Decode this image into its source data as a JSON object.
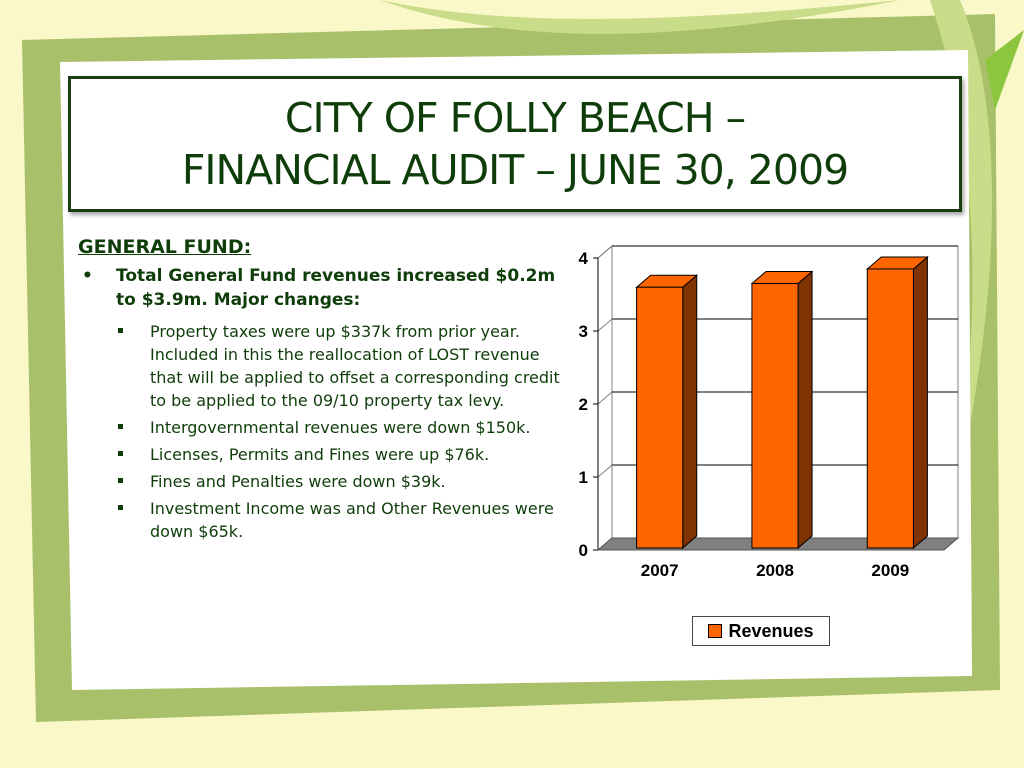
{
  "slide": {
    "title_line1": "CITY OF FOLLY BEACH –",
    "title_line2": "FINANCIAL AUDIT – JUNE 30, 2009"
  },
  "content": {
    "heading": "GENERAL FUND:",
    "bullet_mark": "•",
    "main_bullet": "Total General Fund revenues increased $0.2m to $3.9m.  Major changes:",
    "sub_bullets": [
      "Property taxes were up $337k from prior year.  Included in this the reallocation of LOST revenue that will be applied to offset a corresponding credit to be applied to the 09/10 property tax levy.",
      "Intergovernmental revenues were down $150k.",
      "Licenses, Permits and Fines were up $76k.",
      "Fines and Penalties were down $39k.",
      "Investment Income was  and Other Revenues were down $65k."
    ]
  },
  "chart_data": {
    "type": "bar",
    "categories": [
      "2007",
      "2008",
      "2009"
    ],
    "series": [
      {
        "name": "Revenues",
        "values": [
          3.6,
          3.65,
          3.85
        ]
      }
    ],
    "ylim": [
      0,
      4
    ],
    "yticks": [
      "0",
      "1",
      "2",
      "3",
      "4"
    ],
    "grid": true,
    "legend": "bottom",
    "bar_front_color": "#ff6600",
    "bar_side_color": "#7f3300"
  }
}
